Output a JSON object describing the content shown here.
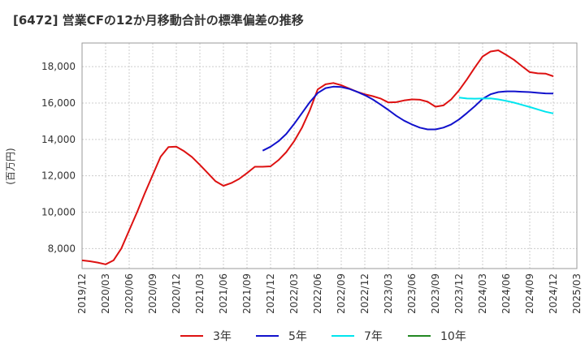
{
  "chart_data": {
    "type": "line",
    "title": "[6472]  営業CFの12か月移動合計の標準偏差の推移",
    "xlabel": "",
    "ylabel": "(百万円)",
    "ylim": [
      6900,
      19300
    ],
    "yticks": [
      8000,
      10000,
      12000,
      14000,
      16000,
      18000
    ],
    "ytick_labels": [
      "8,000",
      "10,000",
      "12,000",
      "14,000",
      "16,000",
      "18,000"
    ],
    "x_start": "2019/12",
    "x_end": "2025/03",
    "xtick_labels": [
      "2019/12",
      "2020/03",
      "2020/06",
      "2020/09",
      "2020/12",
      "2021/03",
      "2021/06",
      "2021/09",
      "2021/12",
      "2022/03",
      "2022/06",
      "2022/09",
      "2022/12",
      "2023/03",
      "2023/06",
      "2023/09",
      "2023/12",
      "2024/03",
      "2024/06",
      "2024/09",
      "2024/12",
      "2025/03"
    ],
    "grid": true,
    "legend_position": "bottom",
    "series": [
      {
        "name": "3年",
        "color": "#dd1111",
        "x": [
          "2019/12",
          "2020/01",
          "2020/02",
          "2020/03",
          "2020/04",
          "2020/05",
          "2020/06",
          "2020/07",
          "2020/08",
          "2020/09",
          "2020/10",
          "2020/11",
          "2020/12",
          "2021/01",
          "2021/02",
          "2021/03",
          "2021/04",
          "2021/05",
          "2021/06",
          "2021/07",
          "2021/08",
          "2021/09",
          "2021/10",
          "2021/11",
          "2021/12",
          "2022/01",
          "2022/02",
          "2022/03",
          "2022/04",
          "2022/05",
          "2022/06",
          "2022/07",
          "2022/08",
          "2022/09",
          "2022/10",
          "2022/11",
          "2022/12",
          "2023/01",
          "2023/02",
          "2023/03",
          "2023/04",
          "2023/05",
          "2023/06",
          "2023/07",
          "2023/08",
          "2023/09",
          "2023/10",
          "2023/11",
          "2023/12",
          "2024/01",
          "2024/02",
          "2024/03",
          "2024/04",
          "2024/05",
          "2024/06",
          "2024/07",
          "2024/08",
          "2024/09",
          "2024/10",
          "2024/11",
          "2024/12"
        ],
        "values": [
          7350,
          7300,
          7230,
          7130,
          7350,
          8000,
          9000,
          10000,
          11050,
          12050,
          13050,
          13580,
          13600,
          13350,
          13030,
          12600,
          12150,
          11700,
          11450,
          11600,
          11830,
          12150,
          12500,
          12500,
          12520,
          12860,
          13300,
          13900,
          14650,
          15600,
          16750,
          17030,
          17100,
          16980,
          16800,
          16620,
          16480,
          16380,
          16250,
          16030,
          16050,
          16140,
          16200,
          16180,
          16070,
          15800,
          15870,
          16200,
          16700,
          17300,
          17950,
          18560,
          18830,
          18900,
          18650,
          18370,
          18030,
          17700,
          17630,
          17620,
          17470
        ]
      },
      {
        "name": "5年",
        "color": "#1111cc",
        "x": [
          "2021/11",
          "2021/12",
          "2022/01",
          "2022/02",
          "2022/03",
          "2022/04",
          "2022/05",
          "2022/06",
          "2022/07",
          "2022/08",
          "2022/09",
          "2022/10",
          "2022/11",
          "2022/12",
          "2023/01",
          "2023/02",
          "2023/03",
          "2023/04",
          "2023/05",
          "2023/06",
          "2023/07",
          "2023/08",
          "2023/09",
          "2023/10",
          "2023/11",
          "2023/12",
          "2024/01",
          "2024/02",
          "2024/03",
          "2024/04",
          "2024/05",
          "2024/06",
          "2024/07",
          "2024/08",
          "2024/09",
          "2024/10",
          "2024/11",
          "2024/12"
        ],
        "values": [
          13380,
          13600,
          13900,
          14300,
          14850,
          15450,
          16050,
          16550,
          16820,
          16900,
          16880,
          16780,
          16620,
          16430,
          16200,
          15920,
          15620,
          15300,
          15030,
          14820,
          14650,
          14550,
          14550,
          14650,
          14820,
          15100,
          15450,
          15820,
          16230,
          16480,
          16600,
          16640,
          16640,
          16620,
          16600,
          16560,
          16530,
          16520
        ]
      },
      {
        "name": "7年",
        "color": "#00e5ee",
        "x": [
          "2023/12",
          "2024/01",
          "2024/02",
          "2024/03",
          "2024/04",
          "2024/05",
          "2024/06",
          "2024/07",
          "2024/08",
          "2024/09",
          "2024/10",
          "2024/11",
          "2024/12"
        ],
        "values": [
          16300,
          16250,
          16240,
          16250,
          16260,
          16200,
          16120,
          16020,
          15900,
          15780,
          15650,
          15520,
          15430
        ]
      },
      {
        "name": "10年",
        "color": "#228822",
        "x": [],
        "values": []
      }
    ]
  }
}
